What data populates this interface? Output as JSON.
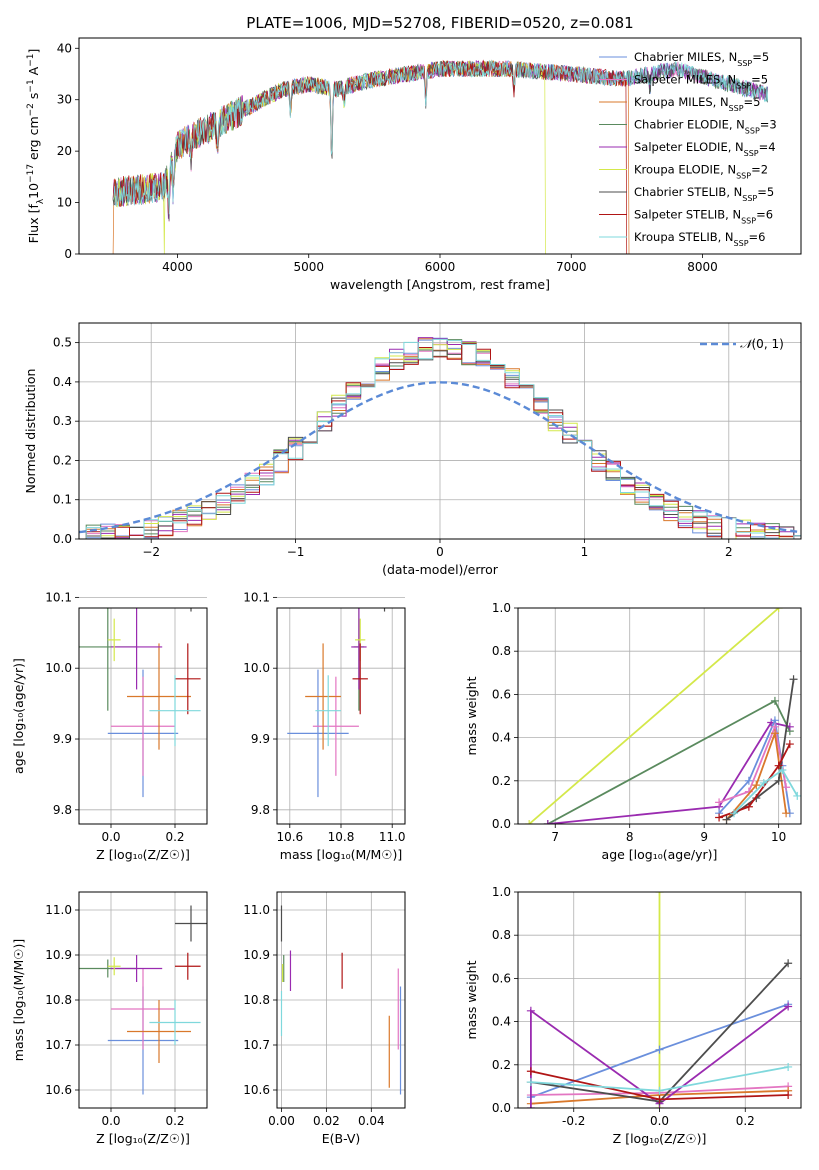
{
  "title": "PLATE=1006, MJD=52708, FIBERID=0520, z=0.081",
  "colors": {
    "chabrier_miles": "#6a8fdc",
    "salpeter_miles": "#e376c2",
    "kroupa_miles": "#d9782b",
    "chabrier_elodie": "#5a8a5e",
    "salpeter_elodie": "#9a2bb0",
    "kroupa_elodie": "#d4e84a",
    "chabrier_stelib": "#4d4d4d",
    "salpeter_stelib": "#b01515",
    "kroupa_stelib": "#7fd8dc",
    "normal_curve": "#5b8ad6",
    "grid": "#b0b0b0"
  },
  "legend": [
    {
      "label": "Chabrier MILES, N",
      "sub": "SSP",
      "tail": "=5",
      "color": "#6a8fdc"
    },
    {
      "label": "Salpeter MILES, N",
      "sub": "SSP",
      "tail": "=5",
      "color": "#e376c2"
    },
    {
      "label": "Kroupa MILES, N",
      "sub": "SSP",
      "tail": "=5",
      "color": "#d9782b"
    },
    {
      "label": "Chabrier ELODIE, N",
      "sub": "SSP",
      "tail": "=3",
      "color": "#5a8a5e"
    },
    {
      "label": "Salpeter ELODIE, N",
      "sub": "SSP",
      "tail": "=4",
      "color": "#9a2bb0"
    },
    {
      "label": "Kroupa ELODIE, N",
      "sub": "SSP",
      "tail": "=2",
      "color": "#d4e84a"
    },
    {
      "label": "Chabrier STELIB, N",
      "sub": "SSP",
      "tail": "=5",
      "color": "#4d4d4d"
    },
    {
      "label": "Salpeter STELIB, N",
      "sub": "SSP",
      "tail": "=6",
      "color": "#b01515"
    },
    {
      "label": "Kroupa STELIB, N",
      "sub": "SSP",
      "tail": "=6",
      "color": "#7fd8dc"
    }
  ],
  "chart_data": [
    {
      "id": "spectrum",
      "type": "line",
      "xlabel": "wavelength [Angstrom, rest frame]",
      "ylabel_parts": [
        "Flux [f",
        "λ",
        "10",
        "−17",
        " erg cm",
        "−2",
        " s",
        "−1",
        " A",
        "−1",
        "]"
      ],
      "xlim": [
        3250,
        8750
      ],
      "ylim": [
        0,
        42
      ],
      "xticks": [
        4000,
        5000,
        6000,
        7000,
        8000
      ],
      "yticks": [
        0,
        10,
        20,
        30,
        40
      ],
      "continuum": [
        [
          3510,
          12
        ],
        [
          3700,
          12.5
        ],
        [
          3900,
          13
        ],
        [
          4000,
          21
        ],
        [
          4200,
          24
        ],
        [
          4500,
          28
        ],
        [
          4800,
          32
        ],
        [
          5000,
          33
        ],
        [
          5200,
          32
        ],
        [
          5500,
          34
        ],
        [
          6000,
          36
        ],
        [
          6500,
          36
        ],
        [
          7000,
          35
        ],
        [
          7400,
          34
        ],
        [
          7800,
          36
        ],
        [
          8200,
          33
        ],
        [
          8500,
          31
        ]
      ],
      "dropouts": [
        {
          "series": "kroupa_miles",
          "x": [
            3510,
            7440
          ]
        },
        {
          "series": "kroupa_elodie",
          "x": [
            3900,
            6800
          ]
        },
        {
          "series": "salpeter_stelib",
          "x": [
            7420,
            7420
          ]
        }
      ]
    },
    {
      "id": "residuals",
      "type": "histogram",
      "xlabel": "(data-model)/error",
      "ylabel": "Normed distribution",
      "xlim": [
        -2.5,
        2.5
      ],
      "ylim": [
        0,
        0.55
      ],
      "xticks": [
        -2,
        -1,
        0,
        1,
        2
      ],
      "yticks": [
        0.0,
        0.1,
        0.2,
        0.3,
        0.4,
        0.5
      ],
      "bin_width": 0.1,
      "legend_prefix": "𝒩",
      "legend_args": "(0, 1)"
    },
    {
      "id": "age_vs_Z",
      "type": "scatter",
      "xlabel": "Z [log₁₀(Z/Z☉)]",
      "ylabel": "age  [log₁₀(age/yr)]",
      "xlim": [
        -0.1,
        0.3
      ],
      "ylim": [
        9.78,
        10.085
      ],
      "xticks": [
        0.0,
        0.2
      ],
      "yticks": [
        9.8,
        9.9,
        10.0,
        10.1
      ],
      "points": [
        {
          "series": "chabrier_miles",
          "x": 0.1,
          "y": 9.908,
          "xerr": 0.11,
          "yerr": 0.09
        },
        {
          "series": "salpeter_miles",
          "x": 0.1,
          "y": 9.918,
          "xerr": 0.1,
          "yerr": 0.07
        },
        {
          "series": "kroupa_miles",
          "x": 0.15,
          "y": 9.96,
          "xerr": 0.1,
          "yerr": 0.075
        },
        {
          "series": "chabrier_elodie",
          "x": -0.01,
          "y": 10.03,
          "xerr": 0.09,
          "yerr": 0.09
        },
        {
          "series": "salpeter_elodie",
          "x": 0.08,
          "y": 10.03,
          "xerr": 0.08,
          "yerr": 0.06
        },
        {
          "series": "kroupa_elodie",
          "x": 0.01,
          "y": 10.04,
          "xerr": 0.02,
          "yerr": 0.03
        },
        {
          "series": "chabrier_stelib",
          "x": 0.25,
          "y": 10.13,
          "xerr": 0.05,
          "yerr": 0.05
        },
        {
          "series": "salpeter_stelib",
          "x": 0.24,
          "y": 9.985,
          "xerr": 0.04,
          "yerr": 0.05
        },
        {
          "series": "kroupa_stelib",
          "x": 0.2,
          "y": 9.94,
          "xerr": 0.08,
          "yerr": 0.05
        }
      ]
    },
    {
      "id": "age_vs_mass",
      "type": "scatter",
      "xlabel": "mass [log₁₀(M/M☉)]",
      "ylabel": "",
      "xlim": [
        10.55,
        11.05
      ],
      "ylim": [
        9.78,
        10.085
      ],
      "xticks": [
        10.6,
        10.8,
        11.0
      ],
      "yticks": [
        9.8,
        9.9,
        10.0,
        10.1
      ],
      "points": [
        {
          "series": "chabrier_miles",
          "x": 10.71,
          "y": 9.908,
          "xerr": 0.12,
          "yerr": 0.09
        },
        {
          "series": "salpeter_miles",
          "x": 10.78,
          "y": 9.918,
          "xerr": 0.09,
          "yerr": 0.07
        },
        {
          "series": "kroupa_miles",
          "x": 10.73,
          "y": 9.96,
          "xerr": 0.07,
          "yerr": 0.075
        },
        {
          "series": "chabrier_elodie",
          "x": 10.87,
          "y": 10.03,
          "xerr": 0.02,
          "yerr": 0.09
        },
        {
          "series": "salpeter_elodie",
          "x": 10.87,
          "y": 10.03,
          "xerr": 0.03,
          "yerr": 0.06
        },
        {
          "series": "kroupa_elodie",
          "x": 10.875,
          "y": 10.04,
          "xerr": 0.02,
          "yerr": 0.03
        },
        {
          "series": "chabrier_stelib",
          "x": 10.97,
          "y": 10.13,
          "xerr": 0.04,
          "yerr": 0.05
        },
        {
          "series": "salpeter_stelib",
          "x": 10.875,
          "y": 9.985,
          "xerr": 0.03,
          "yerr": 0.05
        },
        {
          "series": "kroupa_stelib",
          "x": 10.75,
          "y": 9.94,
          "xerr": 0.05,
          "yerr": 0.05
        }
      ]
    },
    {
      "id": "mass_weight_vs_age",
      "type": "line",
      "xlabel": "age  [log₁₀(age/yr)]",
      "ylabel": "mass weight",
      "xlim": [
        6.5,
        10.3
      ],
      "ylim": [
        0,
        1.0
      ],
      "xticks": [
        7,
        8,
        9,
        10
      ],
      "yticks": [
        0.0,
        0.2,
        0.4,
        0.6,
        0.8,
        1.0
      ],
      "series": [
        {
          "series": "kroupa_elodie",
          "x": [
            6.65,
            10.0
          ],
          "y": [
            0.0,
            1.0
          ]
        },
        {
          "series": "chabrier_elodie",
          "x": [
            6.9,
            9.95,
            10.15
          ],
          "y": [
            0.0,
            0.57,
            0.43
          ]
        },
        {
          "series": "salpeter_elodie",
          "x": [
            6.9,
            9.2,
            9.9,
            10.15
          ],
          "y": [
            0.0,
            0.08,
            0.47,
            0.45
          ]
        },
        {
          "series": "chabrier_miles",
          "x": [
            9.2,
            9.6,
            9.95,
            10.05,
            10.15
          ],
          "y": [
            0.05,
            0.2,
            0.48,
            0.27,
            0.05
          ]
        },
        {
          "series": "salpeter_miles",
          "x": [
            9.2,
            9.6,
            9.95,
            10.1
          ],
          "y": [
            0.1,
            0.15,
            0.45,
            0.17
          ]
        },
        {
          "series": "kroupa_miles",
          "x": [
            9.3,
            9.7,
            9.95,
            10.1
          ],
          "y": [
            0.02,
            0.18,
            0.42,
            0.05
          ]
        },
        {
          "series": "chabrier_stelib",
          "x": [
            9.3,
            9.7,
            10.0,
            10.2
          ],
          "y": [
            0.02,
            0.12,
            0.2,
            0.67
          ]
        },
        {
          "series": "salpeter_stelib",
          "x": [
            9.2,
            9.6,
            10.0,
            10.15
          ],
          "y": [
            0.03,
            0.08,
            0.27,
            0.37
          ]
        },
        {
          "series": "kroupa_stelib",
          "x": [
            9.4,
            9.8,
            10.05,
            10.25
          ],
          "y": [
            0.05,
            0.19,
            0.25,
            0.13
          ]
        }
      ]
    },
    {
      "id": "mass_vs_Z",
      "type": "scatter",
      "xlabel": "Z [log₁₀(Z/Z☉)]",
      "ylabel": "mass [log₁₀(M/M☉)]",
      "xlim": [
        -0.1,
        0.3
      ],
      "ylim": [
        10.56,
        11.04
      ],
      "xticks": [
        0.0,
        0.2
      ],
      "yticks": [
        10.6,
        10.7,
        10.8,
        10.9,
        11.0
      ],
      "points": [
        {
          "series": "chabrier_miles",
          "x": 0.1,
          "y": 10.71,
          "xerr": 0.11,
          "yerr": 0.12
        },
        {
          "series": "salpeter_miles",
          "x": 0.1,
          "y": 10.78,
          "xerr": 0.1,
          "yerr": 0.09
        },
        {
          "series": "kroupa_miles",
          "x": 0.15,
          "y": 10.73,
          "xerr": 0.1,
          "yerr": 0.07
        },
        {
          "series": "chabrier_elodie",
          "x": -0.01,
          "y": 10.87,
          "xerr": 0.09,
          "yerr": 0.02
        },
        {
          "series": "salpeter_elodie",
          "x": 0.08,
          "y": 10.87,
          "xerr": 0.08,
          "yerr": 0.03
        },
        {
          "series": "kroupa_elodie",
          "x": 0.01,
          "y": 10.875,
          "xerr": 0.02,
          "yerr": 0.02
        },
        {
          "series": "chabrier_stelib",
          "x": 0.25,
          "y": 10.97,
          "xerr": 0.05,
          "yerr": 0.04
        },
        {
          "series": "salpeter_stelib",
          "x": 0.24,
          "y": 10.875,
          "xerr": 0.04,
          "yerr": 0.03
        },
        {
          "series": "kroupa_stelib",
          "x": 0.2,
          "y": 10.75,
          "xerr": 0.08,
          "yerr": 0.05
        }
      ]
    },
    {
      "id": "mass_vs_ebv",
      "type": "scatter",
      "xlabel": "E(B-V)",
      "ylabel": "",
      "xlim": [
        -0.002,
        0.055
      ],
      "ylim": [
        10.56,
        11.04
      ],
      "xticks": [
        0.0,
        0.02,
        0.04
      ],
      "yticks": [
        10.6,
        10.7,
        10.8,
        10.9,
        11.0
      ],
      "points": [
        {
          "series": "chabrier_miles",
          "x": 0.053,
          "y": 10.71,
          "xerr": 0.0,
          "yerr": 0.12
        },
        {
          "series": "salpeter_miles",
          "x": 0.052,
          "y": 10.78,
          "xerr": 0.0,
          "yerr": 0.09
        },
        {
          "series": "kroupa_miles",
          "x": 0.048,
          "y": 10.685,
          "xerr": 0.0,
          "yerr": 0.08
        },
        {
          "series": "chabrier_elodie",
          "x": 0.001,
          "y": 10.87,
          "xerr": 0.0,
          "yerr": 0.03
        },
        {
          "series": "salpeter_elodie",
          "x": 0.004,
          "y": 10.865,
          "xerr": 0.0,
          "yerr": 0.045
        },
        {
          "series": "kroupa_elodie",
          "x": 0.0005,
          "y": 10.86,
          "xerr": 0.0,
          "yerr": 0.02
        },
        {
          "series": "chabrier_stelib",
          "x": 0.0,
          "y": 10.97,
          "xerr": 0.0,
          "yerr": 0.04
        },
        {
          "series": "salpeter_stelib",
          "x": 0.027,
          "y": 10.865,
          "xerr": 0.0,
          "yerr": 0.04
        },
        {
          "series": "kroupa_stelib",
          "x": 0.0,
          "y": 10.77,
          "xerr": 0.0,
          "yerr": 0.05
        }
      ]
    },
    {
      "id": "mass_weight_vs_Z",
      "type": "line",
      "xlabel": "Z [log₁₀(Z/Z☉)]",
      "ylabel": "mass weight",
      "xlim": [
        -0.33,
        0.33
      ],
      "ylim": [
        0,
        1.0
      ],
      "xticks": [
        -0.2,
        0.0,
        0.2
      ],
      "yticks": [
        0.0,
        0.2,
        0.4,
        0.6,
        0.8,
        1.0
      ],
      "series": [
        {
          "series": "kroupa_elodie",
          "x": [
            0.0,
            0.0
          ],
          "y": [
            0.0,
            1.0
          ]
        },
        {
          "series": "chabrier_miles",
          "x": [
            -0.3,
            0.0,
            0.3
          ],
          "y": [
            0.05,
            0.27,
            0.48
          ]
        },
        {
          "series": "salpeter_miles",
          "x": [
            -0.3,
            0.0,
            0.3
          ],
          "y": [
            0.06,
            0.07,
            0.1
          ]
        },
        {
          "series": "kroupa_miles",
          "x": [
            -0.3,
            0.0,
            0.3
          ],
          "y": [
            0.02,
            0.06,
            0.08
          ]
        },
        {
          "series": "salpeter_elodie",
          "x": [
            -0.3,
            -0.3,
            0.0,
            0.3
          ],
          "y": [
            0.0,
            0.45,
            0.02,
            0.47
          ]
        },
        {
          "series": "chabrier_stelib",
          "x": [
            -0.3,
            0.0,
            0.3
          ],
          "y": [
            0.12,
            0.03,
            0.67
          ]
        },
        {
          "series": "salpeter_stelib",
          "x": [
            -0.3,
            0.0,
            0.3
          ],
          "y": [
            0.17,
            0.04,
            0.06
          ]
        },
        {
          "series": "kroupa_stelib",
          "x": [
            -0.3,
            0.0,
            0.3
          ],
          "y": [
            0.12,
            0.08,
            0.19
          ]
        }
      ]
    }
  ]
}
